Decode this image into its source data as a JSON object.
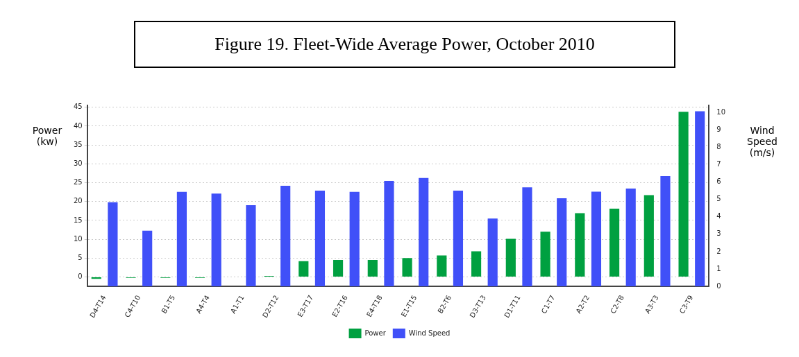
{
  "chart_data": {
    "type": "bar",
    "title": "Figure 19. Fleet-Wide Average Power,  October 2010",
    "categories": [
      "D4-T14",
      "C4-T10",
      "B1-T5",
      "A4-T4",
      "A1-T1",
      "D2-T12",
      "E3-T17",
      "E2-T16",
      "E4-T18",
      "E1-T15",
      "B2-T6",
      "D3-T13",
      "D1-T11",
      "C1-T7",
      "A2-T2",
      "C2-T8",
      "A3-T3",
      "C3-T9"
    ],
    "series": [
      {
        "name": "Power",
        "color": "#00a040",
        "values": [
          -0.5,
          -0.2,
          -0.2,
          -0.2,
          0,
          0.3,
          4.2,
          4.5,
          4.5,
          5.0,
          5.7,
          6.8,
          10.1,
          12.0,
          16.9,
          18.1,
          21.7,
          43.8
        ]
      },
      {
        "name": "Wind Speed",
        "color": "#4050f8",
        "axis": "y2",
        "values": [
          4.84,
          3.2,
          5.43,
          5.33,
          4.67,
          5.78,
          5.5,
          5.43,
          6.06,
          6.23,
          5.5,
          3.9,
          5.69,
          5.06,
          5.44,
          5.62,
          6.34,
          10.06
        ]
      }
    ],
    "ylabel": "Power\n(kw)",
    "y2label": "Wind\nSpeed\n(m/s)",
    "ylim": [
      -2.5,
      45.5
    ],
    "yticks": [
      0,
      5,
      10,
      15,
      20,
      25,
      30,
      35,
      40,
      45
    ],
    "y2lim": [
      0,
      10.4
    ],
    "y2ticks": [
      0,
      1,
      2,
      3,
      4,
      5,
      6,
      7,
      8,
      9,
      10
    ],
    "grid": "y",
    "legend": "bottom"
  }
}
